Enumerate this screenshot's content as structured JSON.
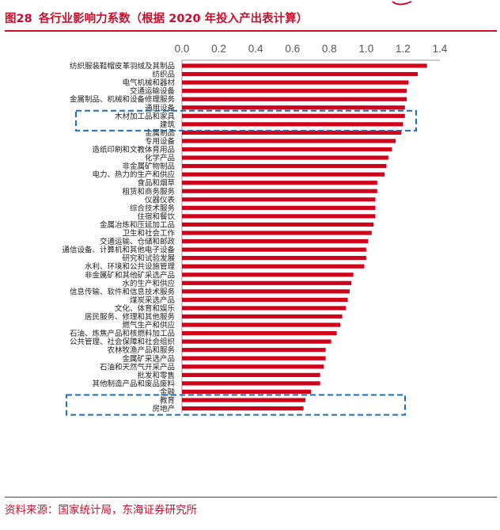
{
  "figure": {
    "number": "图28",
    "title": "各行业影响力系数（根据 2020 年投入产出表计算）",
    "source": "资料来源：国家统计局，东海证券研究所"
  },
  "colors": {
    "accent": "#c8102e",
    "bar": "#d0021b",
    "highlight_box": "#1e6fb8",
    "axis": "#999999"
  },
  "chart_data": {
    "type": "bar",
    "orientation": "horizontal",
    "title": "",
    "xlabel": "",
    "ylabel": "",
    "xlim": [
      0,
      1.4
    ],
    "xticks": [
      "0.0",
      "0.2",
      "0.4",
      "0.6",
      "0.8",
      "1.0",
      "1.2",
      "1.4"
    ],
    "axis_position": "top",
    "grid": false,
    "legend": "none",
    "categories": [
      "纺织服装鞋帽皮革羽绒及其制品",
      "纺织品",
      "电气机械和器材",
      "交通运输设备",
      "金属制品、机械和设备修理服务",
      "通用设备",
      "木材加工品和家具",
      "建筑",
      "金属制品",
      "专用设备",
      "造纸印刷和文教体育用品",
      "化学产品",
      "非金属矿物制品",
      "电力、热力的生产和供应",
      "食品和烟草",
      "租赁和商务服务",
      "仪器仪表",
      "综合技术服务",
      "住宿和餐饮",
      "金属冶炼和压延加工品",
      "卫生和社会工作",
      "交通运输、仓储和邮政",
      "通信设备、计算机和其他电子设备",
      "研究和试验发展",
      "水利、环境和公共设施管理",
      "非金属矿和其他矿采选产品",
      "水的生产和供应",
      "信息传输、软件和信息技术服务",
      "煤炭采选产品",
      "文化、体育和娱乐",
      "居民服务、修理和其他服务",
      "燃气生产和供应",
      "石油、炼焦产品和核燃料加工品",
      "公共管理、社会保障和社会组织",
      "农林牧渔产品和服务",
      "金属矿采选产品",
      "石油和天然气开采产品",
      "批发和零售",
      "其他制造产品和废品废料",
      "金融",
      "教育",
      "房地产"
    ],
    "values": [
      1.33,
      1.28,
      1.23,
      1.22,
      1.22,
      1.21,
      1.21,
      1.2,
      1.19,
      1.16,
      1.14,
      1.12,
      1.11,
      1.1,
      1.06,
      1.06,
      1.05,
      1.05,
      1.05,
      1.04,
      1.03,
      1.01,
      1.0,
      1.0,
      0.99,
      0.93,
      0.92,
      0.91,
      0.9,
      0.89,
      0.87,
      0.86,
      0.84,
      0.81,
      0.78,
      0.78,
      0.77,
      0.75,
      0.75,
      0.7,
      0.67,
      0.66
    ],
    "highlighted": [
      "建筑",
      "房地产"
    ]
  }
}
